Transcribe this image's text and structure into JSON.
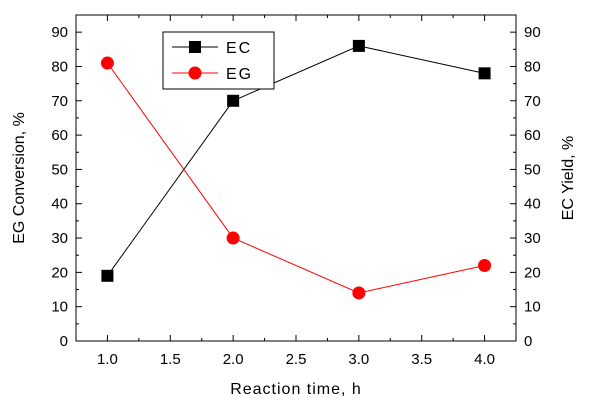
{
  "chart_data": {
    "type": "line",
    "xlabel": "Reaction time, h",
    "ylabel_left": "EG Conversion, %",
    "ylabel_right": "EC Yield, %",
    "xlim": [
      0.75,
      4.25
    ],
    "ylim": [
      0,
      95
    ],
    "x_ticks": [
      "1.0",
      "1.5",
      "2.0",
      "2.5",
      "3.0",
      "3.5",
      "4.0"
    ],
    "y_ticks": [
      "0",
      "10",
      "20",
      "30",
      "40",
      "50",
      "60",
      "70",
      "80",
      "90"
    ],
    "legend_position": "top-left",
    "series": [
      {
        "name": "EC",
        "axis": "right",
        "marker": "square",
        "color": "#000000",
        "x": [
          1.0,
          2.0,
          3.0,
          4.0
        ],
        "y": [
          19,
          70,
          86,
          78
        ]
      },
      {
        "name": "EG",
        "axis": "left",
        "marker": "circle",
        "color": "#ff0000",
        "x": [
          1.0,
          2.0,
          3.0,
          4.0
        ],
        "y": [
          81,
          30,
          14,
          22
        ]
      }
    ]
  }
}
